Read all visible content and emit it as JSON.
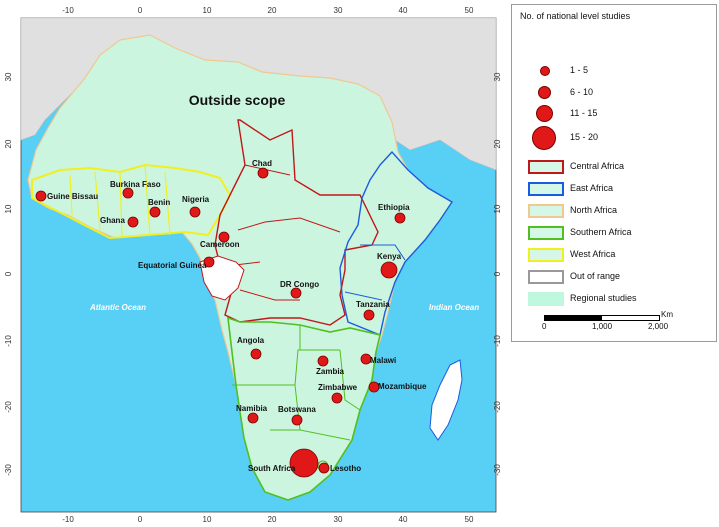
{
  "map": {
    "outside_scope": "Outside scope",
    "ocean_left": "Atlantic Ocean",
    "ocean_right": "Indian Ocean",
    "ticks_top": [
      "-10",
      "0",
      "10",
      "20",
      "30",
      "40",
      "50"
    ],
    "ticks_bottom": [
      "-10",
      "0",
      "10",
      "20",
      "30",
      "40",
      "50"
    ],
    "ticks_left": [
      "30",
      "20",
      "10",
      "0",
      "-10",
      "-20",
      "-30"
    ],
    "ticks_right": [
      "30",
      "20",
      "10",
      "0",
      "-10",
      "-20",
      "-30"
    ],
    "countries": [
      {
        "name": "Guine Bissau",
        "size": 1
      },
      {
        "name": "Burkina Faso",
        "size": 1
      },
      {
        "name": "Benin",
        "size": 1
      },
      {
        "name": "Nigeria",
        "size": 1
      },
      {
        "name": "Ghana",
        "size": 1
      },
      {
        "name": "Chad",
        "size": 1
      },
      {
        "name": "Cameroon",
        "size": 1
      },
      {
        "name": "Equatorial Guinea",
        "size": 1
      },
      {
        "name": "Ethiopia",
        "size": 1
      },
      {
        "name": "Kenya",
        "size": 2
      },
      {
        "name": "DR Congo",
        "size": 1
      },
      {
        "name": "Tanzania",
        "size": 1
      },
      {
        "name": "Angola",
        "size": 1
      },
      {
        "name": "Zambia",
        "size": 1
      },
      {
        "name": "Malawi",
        "size": 1
      },
      {
        "name": "Zimbabwe",
        "size": 1
      },
      {
        "name": "Mozambique",
        "size": 1
      },
      {
        "name": "Namibia",
        "size": 1
      },
      {
        "name": "Botswana",
        "size": 1
      },
      {
        "name": "South Africa",
        "size": 4
      },
      {
        "name": "Lesotho",
        "size": 1
      }
    ]
  },
  "legend": {
    "title": "No. of national level studies",
    "sizes": [
      {
        "label": "1 - 5"
      },
      {
        "label": "6 - 10"
      },
      {
        "label": "11 - 15"
      },
      {
        "label": "15 - 20"
      }
    ],
    "regions": [
      {
        "label": "Central Africa",
        "fill": "#d4f7e8",
        "border": "#c01818"
      },
      {
        "label": "East Africa",
        "fill": "#d4f7e8",
        "border": "#1a5ce0"
      },
      {
        "label": "North Africa",
        "fill": "#d4f7e8",
        "border": "#f0c890"
      },
      {
        "label": "Southern Africa",
        "fill": "#d4f7e8",
        "border": "#50c020"
      },
      {
        "label": "West Africa",
        "fill": "#d4f7e8",
        "border": "#f0f020"
      },
      {
        "label": "Out of range",
        "fill": "#ffffff",
        "border": "#999999"
      },
      {
        "label": "Regional studies",
        "fill": "#bff7df",
        "border": "#bff7df"
      }
    ],
    "scale": {
      "unit": "Km",
      "labels": [
        "0",
        "1,000",
        "2,000"
      ]
    }
  },
  "colors": {
    "ocean": "#58cff5",
    "land": "#ccf5e0",
    "outside": "#e0e0e0",
    "dot": "#e01818"
  }
}
